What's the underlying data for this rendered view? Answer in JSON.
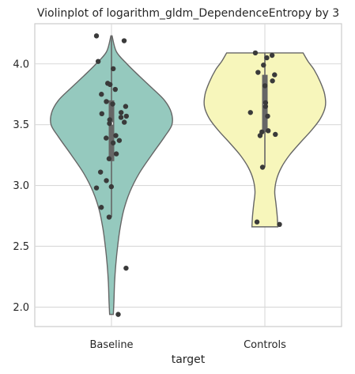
{
  "chart_data": {
    "type": "violin",
    "title": "Violinplot of logarithm_gldm_DependenceEntropy by 3",
    "xlabel": "target",
    "ylabel": "",
    "ylim": [
      1.84,
      4.33
    ],
    "yticks": [
      2.0,
      2.5,
      3.0,
      3.5,
      4.0
    ],
    "ytick_labels": [
      "2.0",
      "2.5",
      "3.0",
      "3.5",
      "4.0"
    ],
    "categories": [
      "Baseline",
      "Controls"
    ],
    "grid": true,
    "series": [
      {
        "category": "Baseline",
        "color": "#95c9be",
        "violin_range": [
          1.94,
          4.23
        ],
        "density_profile": [
          [
            1.94,
            0.03
          ],
          [
            2.05,
            0.04
          ],
          [
            2.2,
            0.05
          ],
          [
            2.35,
            0.07
          ],
          [
            2.5,
            0.1
          ],
          [
            2.65,
            0.14
          ],
          [
            2.8,
            0.2
          ],
          [
            2.95,
            0.3
          ],
          [
            3.1,
            0.45
          ],
          [
            3.25,
            0.65
          ],
          [
            3.4,
            0.86
          ],
          [
            3.5,
            0.98
          ],
          [
            3.6,
            0.97
          ],
          [
            3.7,
            0.86
          ],
          [
            3.8,
            0.66
          ],
          [
            3.9,
            0.45
          ],
          [
            4.0,
            0.25
          ],
          [
            4.1,
            0.08
          ],
          [
            4.23,
            0.01
          ]
        ],
        "quartiles": [
          3.2,
          3.51,
          3.7
        ],
        "whisker": [
          2.74,
          4.23
        ],
        "points": [
          4.23,
          4.19,
          4.02,
          3.96,
          3.84,
          3.83,
          3.79,
          3.75,
          3.69,
          3.67,
          3.65,
          3.6,
          3.59,
          3.57,
          3.56,
          3.54,
          3.52,
          3.51,
          3.41,
          3.39,
          3.37,
          3.35,
          3.26,
          3.22,
          3.11,
          3.04,
          2.99,
          2.98,
          2.82,
          2.74,
          2.32,
          1.94
        ]
      },
      {
        "category": "Controls",
        "color": "#f7f6bb",
        "violin_range": [
          2.66,
          4.09
        ],
        "density_profile": [
          [
            2.66,
            0.21
          ],
          [
            2.75,
            0.2
          ],
          [
            2.85,
            0.18
          ],
          [
            2.95,
            0.16
          ],
          [
            3.05,
            0.19
          ],
          [
            3.15,
            0.27
          ],
          [
            3.25,
            0.4
          ],
          [
            3.35,
            0.57
          ],
          [
            3.45,
            0.75
          ],
          [
            3.55,
            0.9
          ],
          [
            3.65,
            0.98
          ],
          [
            3.75,
            0.97
          ],
          [
            3.85,
            0.9
          ],
          [
            3.95,
            0.8
          ],
          [
            4.02,
            0.7
          ],
          [
            4.09,
            0.62
          ]
        ],
        "quartiles": [
          3.44,
          3.66,
          3.91
        ],
        "whisker": [
          3.15,
          4.09
        ],
        "points": [
          4.09,
          4.07,
          4.05,
          3.99,
          3.93,
          3.91,
          3.86,
          3.82,
          3.68,
          3.65,
          3.6,
          3.57,
          3.45,
          3.44,
          3.42,
          3.41,
          3.15,
          2.7,
          2.68
        ]
      }
    ]
  }
}
